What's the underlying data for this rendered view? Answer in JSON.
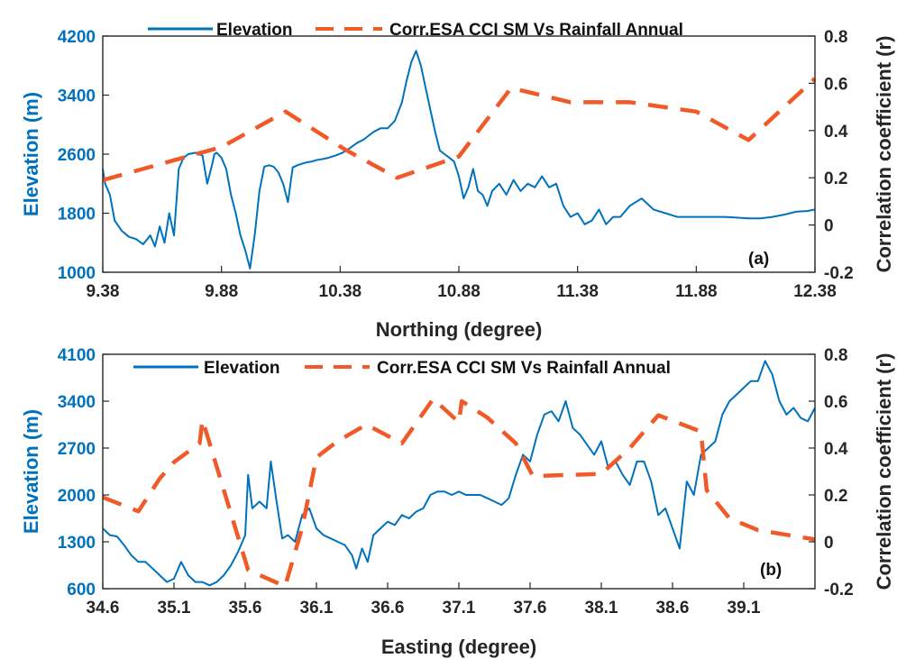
{
  "colors": {
    "elevation": "#0072bd",
    "correlation": "#f05a28",
    "axis": "#262626"
  },
  "chart_data": [
    {
      "type": "line",
      "panel_label": "(a)",
      "xlabel": "Northing (degree)",
      "ylabel_left": "Elevation (m)",
      "ylabel_right": "Correlation coefficient (r)",
      "xlim": [
        9.38,
        12.38
      ],
      "ylim_left": [
        1000,
        4200
      ],
      "ylim_right": [
        -0.2,
        0.8
      ],
      "xticks": [
        "9.38",
        "9.88",
        "10.38",
        "10.88",
        "11.38",
        "11.88",
        "12.38"
      ],
      "yticks_left": [
        "1000",
        "1800",
        "2600",
        "3400",
        "4200"
      ],
      "yticks_right": [
        "-0.2",
        "0",
        "0.2",
        "0.4",
        "0.6",
        "0.8"
      ],
      "legend": [
        "Elevation",
        "Corr.ESA CCI SM Vs Rainfall Annual"
      ],
      "series": [
        {
          "name": "Elevation",
          "axis": "left",
          "x": [
            9.38,
            9.39,
            9.41,
            9.43,
            9.46,
            9.49,
            9.52,
            9.55,
            9.58,
            9.6,
            9.62,
            9.64,
            9.66,
            9.68,
            9.7,
            9.72,
            9.74,
            9.77,
            9.8,
            9.82,
            9.84,
            9.85,
            9.86,
            9.88,
            9.9,
            9.92,
            9.94,
            9.96,
            9.98,
            10.0,
            10.02,
            10.04,
            10.06,
            10.08,
            10.1,
            10.12,
            10.14,
            10.16,
            10.18,
            10.2,
            10.22,
            10.24,
            10.26,
            10.28,
            10.3,
            10.33,
            10.36,
            10.39,
            10.42,
            10.45,
            10.48,
            10.5,
            10.52,
            10.55,
            10.58,
            10.61,
            10.64,
            10.66,
            10.68,
            10.7,
            10.72,
            10.74,
            10.76,
            10.78,
            10.8,
            10.82,
            10.84,
            10.86,
            10.88,
            10.9,
            10.92,
            10.94,
            10.96,
            10.98,
            11.0,
            11.02,
            11.05,
            11.08,
            11.11,
            11.14,
            11.17,
            11.2,
            11.23,
            11.26,
            11.29,
            11.32,
            11.35,
            11.38,
            11.41,
            11.44,
            11.47,
            11.5,
            11.53,
            11.56,
            11.6,
            11.65,
            11.7,
            11.75,
            11.8,
            11.85,
            11.9,
            11.95,
            12.0,
            12.05,
            12.1,
            12.15,
            12.2,
            12.25,
            12.3,
            12.35,
            12.38
          ],
          "y": [
            2400,
            2200,
            2050,
            1700,
            1560,
            1480,
            1450,
            1380,
            1500,
            1350,
            1620,
            1400,
            1800,
            1500,
            2400,
            2550,
            2600,
            2620,
            2580,
            2200,
            2450,
            2600,
            2620,
            2550,
            2400,
            2050,
            1800,
            1500,
            1300,
            1050,
            1500,
            2100,
            2430,
            2450,
            2430,
            2350,
            2200,
            1950,
            2420,
            2450,
            2470,
            2490,
            2500,
            2520,
            2530,
            2550,
            2580,
            2620,
            2680,
            2750,
            2800,
            2850,
            2900,
            2950,
            2950,
            3050,
            3300,
            3600,
            3850,
            4000,
            3800,
            3500,
            3200,
            2900,
            2650,
            2600,
            2550,
            2500,
            2300,
            2000,
            2150,
            2400,
            2100,
            2050,
            1900,
            2100,
            2200,
            2050,
            2250,
            2100,
            2200,
            2150,
            2300,
            2150,
            2200,
            1900,
            1750,
            1800,
            1650,
            1700,
            1850,
            1650,
            1750,
            1750,
            1900,
            2000,
            1850,
            1800,
            1750,
            1750,
            1750,
            1750,
            1750,
            1740,
            1730,
            1730,
            1750,
            1780,
            1820,
            1830,
            1850
          ]
        },
        {
          "name": "Corr.ESA CCI SM Vs Rainfall Annual",
          "axis": "right",
          "x": [
            9.38,
            9.88,
            10.15,
            10.4,
            10.62,
            10.88,
            11.1,
            11.35,
            11.6,
            11.88,
            12.1,
            12.38
          ],
          "y": [
            0.19,
            0.33,
            0.48,
            0.32,
            0.2,
            0.29,
            0.58,
            0.52,
            0.52,
            0.48,
            0.36,
            0.62
          ]
        }
      ]
    },
    {
      "type": "line",
      "panel_label": "(b)",
      "xlabel": "Easting (degree)",
      "ylabel_left": "Elevation (m)",
      "ylabel_right": "Correlation coefficient (r)",
      "xlim": [
        34.6,
        39.6
      ],
      "ylim_left": [
        600,
        4100
      ],
      "ylim_right": [
        -0.2,
        0.8
      ],
      "xticks": [
        "34.6",
        "35.1",
        "35.6",
        "36.1",
        "36.6",
        "37.1",
        "37.6",
        "38.1",
        "38.6",
        "39.1"
      ],
      "yticks_left": [
        "600",
        "1300",
        "2000",
        "2700",
        "3400",
        "4100"
      ],
      "yticks_right": [
        "-0.2",
        "0",
        "0.2",
        "0.4",
        "0.6",
        "0.8"
      ],
      "legend": [
        "Elevation",
        "Corr.ESA CCI SM Vs Rainfall Annual"
      ],
      "series": [
        {
          "name": "Elevation",
          "axis": "left",
          "x": [
            34.6,
            34.65,
            34.7,
            34.75,
            34.8,
            34.85,
            34.9,
            34.95,
            35.0,
            35.05,
            35.1,
            35.15,
            35.2,
            35.25,
            35.3,
            35.35,
            35.4,
            35.45,
            35.5,
            35.55,
            35.6,
            35.62,
            35.65,
            35.7,
            35.75,
            35.78,
            35.82,
            35.86,
            35.9,
            35.95,
            36.0,
            36.05,
            36.1,
            36.15,
            36.2,
            36.25,
            36.3,
            36.35,
            36.38,
            36.42,
            36.46,
            36.5,
            36.55,
            36.6,
            36.65,
            36.7,
            36.75,
            36.8,
            36.85,
            36.9,
            36.95,
            37.0,
            37.05,
            37.1,
            37.15,
            37.2,
            37.25,
            37.3,
            37.35,
            37.4,
            37.45,
            37.5,
            37.55,
            37.6,
            37.65,
            37.7,
            37.75,
            37.8,
            37.85,
            37.9,
            37.95,
            38.0,
            38.05,
            38.1,
            38.15,
            38.2,
            38.25,
            38.3,
            38.35,
            38.4,
            38.45,
            38.5,
            38.55,
            38.6,
            38.65,
            38.7,
            38.75,
            38.8,
            38.85,
            38.9,
            38.95,
            39.0,
            39.05,
            39.1,
            39.15,
            39.2,
            39.25,
            39.3,
            39.35,
            39.4,
            39.45,
            39.5,
            39.55,
            39.6
          ],
          "y": [
            1500,
            1400,
            1380,
            1250,
            1100,
            1000,
            1000,
            900,
            800,
            700,
            750,
            1000,
            800,
            700,
            700,
            650,
            700,
            800,
            950,
            1150,
            1400,
            2300,
            1800,
            1900,
            1800,
            2500,
            1900,
            1350,
            1400,
            1300,
            1700,
            1800,
            1500,
            1400,
            1350,
            1300,
            1250,
            1100,
            900,
            1200,
            1000,
            1400,
            1500,
            1600,
            1550,
            1700,
            1650,
            1750,
            1800,
            2000,
            2050,
            2050,
            2000,
            2050,
            2000,
            2000,
            2000,
            1950,
            1900,
            1850,
            1950,
            2300,
            2600,
            2500,
            2900,
            3200,
            3250,
            3100,
            3400,
            3000,
            2900,
            2750,
            2600,
            2800,
            2400,
            2500,
            2300,
            2150,
            2500,
            2500,
            2200,
            1700,
            1800,
            1500,
            1200,
            2200,
            2000,
            2600,
            2700,
            2800,
            3200,
            3400,
            3500,
            3600,
            3700,
            3700,
            4000,
            3800,
            3400,
            3200,
            3300,
            3150,
            3100,
            3300
          ]
        },
        {
          "name": "Corr.ESA CCI SM Vs Rainfall Annual",
          "axis": "right",
          "x": [
            34.6,
            34.85,
            35.0,
            35.1,
            35.28,
            35.3,
            35.62,
            35.88,
            36.0,
            36.1,
            36.25,
            36.45,
            36.7,
            36.92,
            37.1,
            37.12,
            37.3,
            37.5,
            37.62,
            38.1,
            38.3,
            38.5,
            38.8,
            38.84,
            39.0,
            39.2,
            39.4,
            39.6
          ],
          "y": [
            0.19,
            0.13,
            0.27,
            0.34,
            0.42,
            0.52,
            -0.12,
            -0.19,
            0.06,
            0.36,
            0.43,
            0.5,
            0.42,
            0.61,
            0.51,
            0.6,
            0.53,
            0.42,
            0.28,
            0.29,
            0.4,
            0.54,
            0.47,
            0.22,
            0.1,
            0.05,
            0.03,
            0.01
          ]
        }
      ]
    }
  ]
}
